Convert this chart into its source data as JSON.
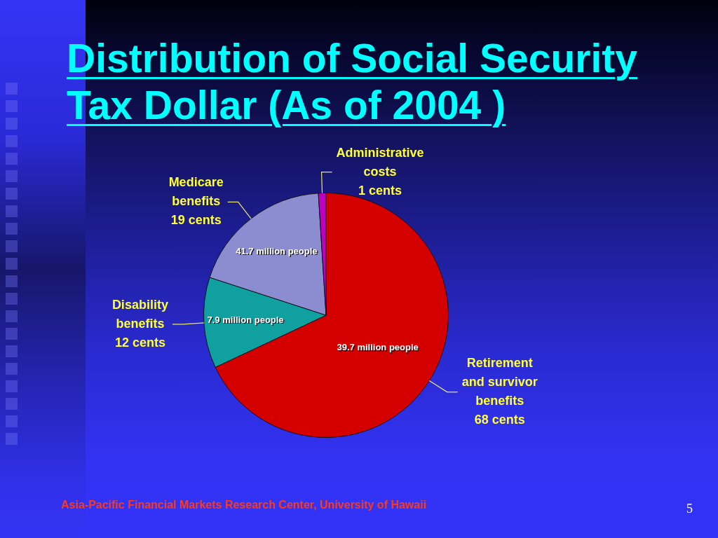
{
  "chart_data": {
    "type": "pie",
    "title": "Distribution of Social Security Tax Dollar (As of 2004 )",
    "categories": [
      "Retirement and survivor benefits",
      "Disability benefits",
      "Medicare benefits",
      "Administrative costs"
    ],
    "values": [
      68,
      12,
      19,
      1
    ],
    "colors": [
      "#d40000",
      "#10a0a0",
      "#8c8cd0",
      "#c000c0"
    ],
    "value_labels": [
      "68 cents",
      "12 cents",
      "19 cents",
      "1 cents"
    ],
    "annotations": [
      {
        "text": "39.7 million people",
        "x": "Retirement and survivor benefits"
      },
      {
        "text": "7.9 million people",
        "x": "Disability benefits"
      },
      {
        "text": "41.7 million people",
        "x": "Medicare benefits"
      },
      "Asia-Pacific Financial Markets Research Center, University of Hawaii",
      "5"
    ]
  }
}
